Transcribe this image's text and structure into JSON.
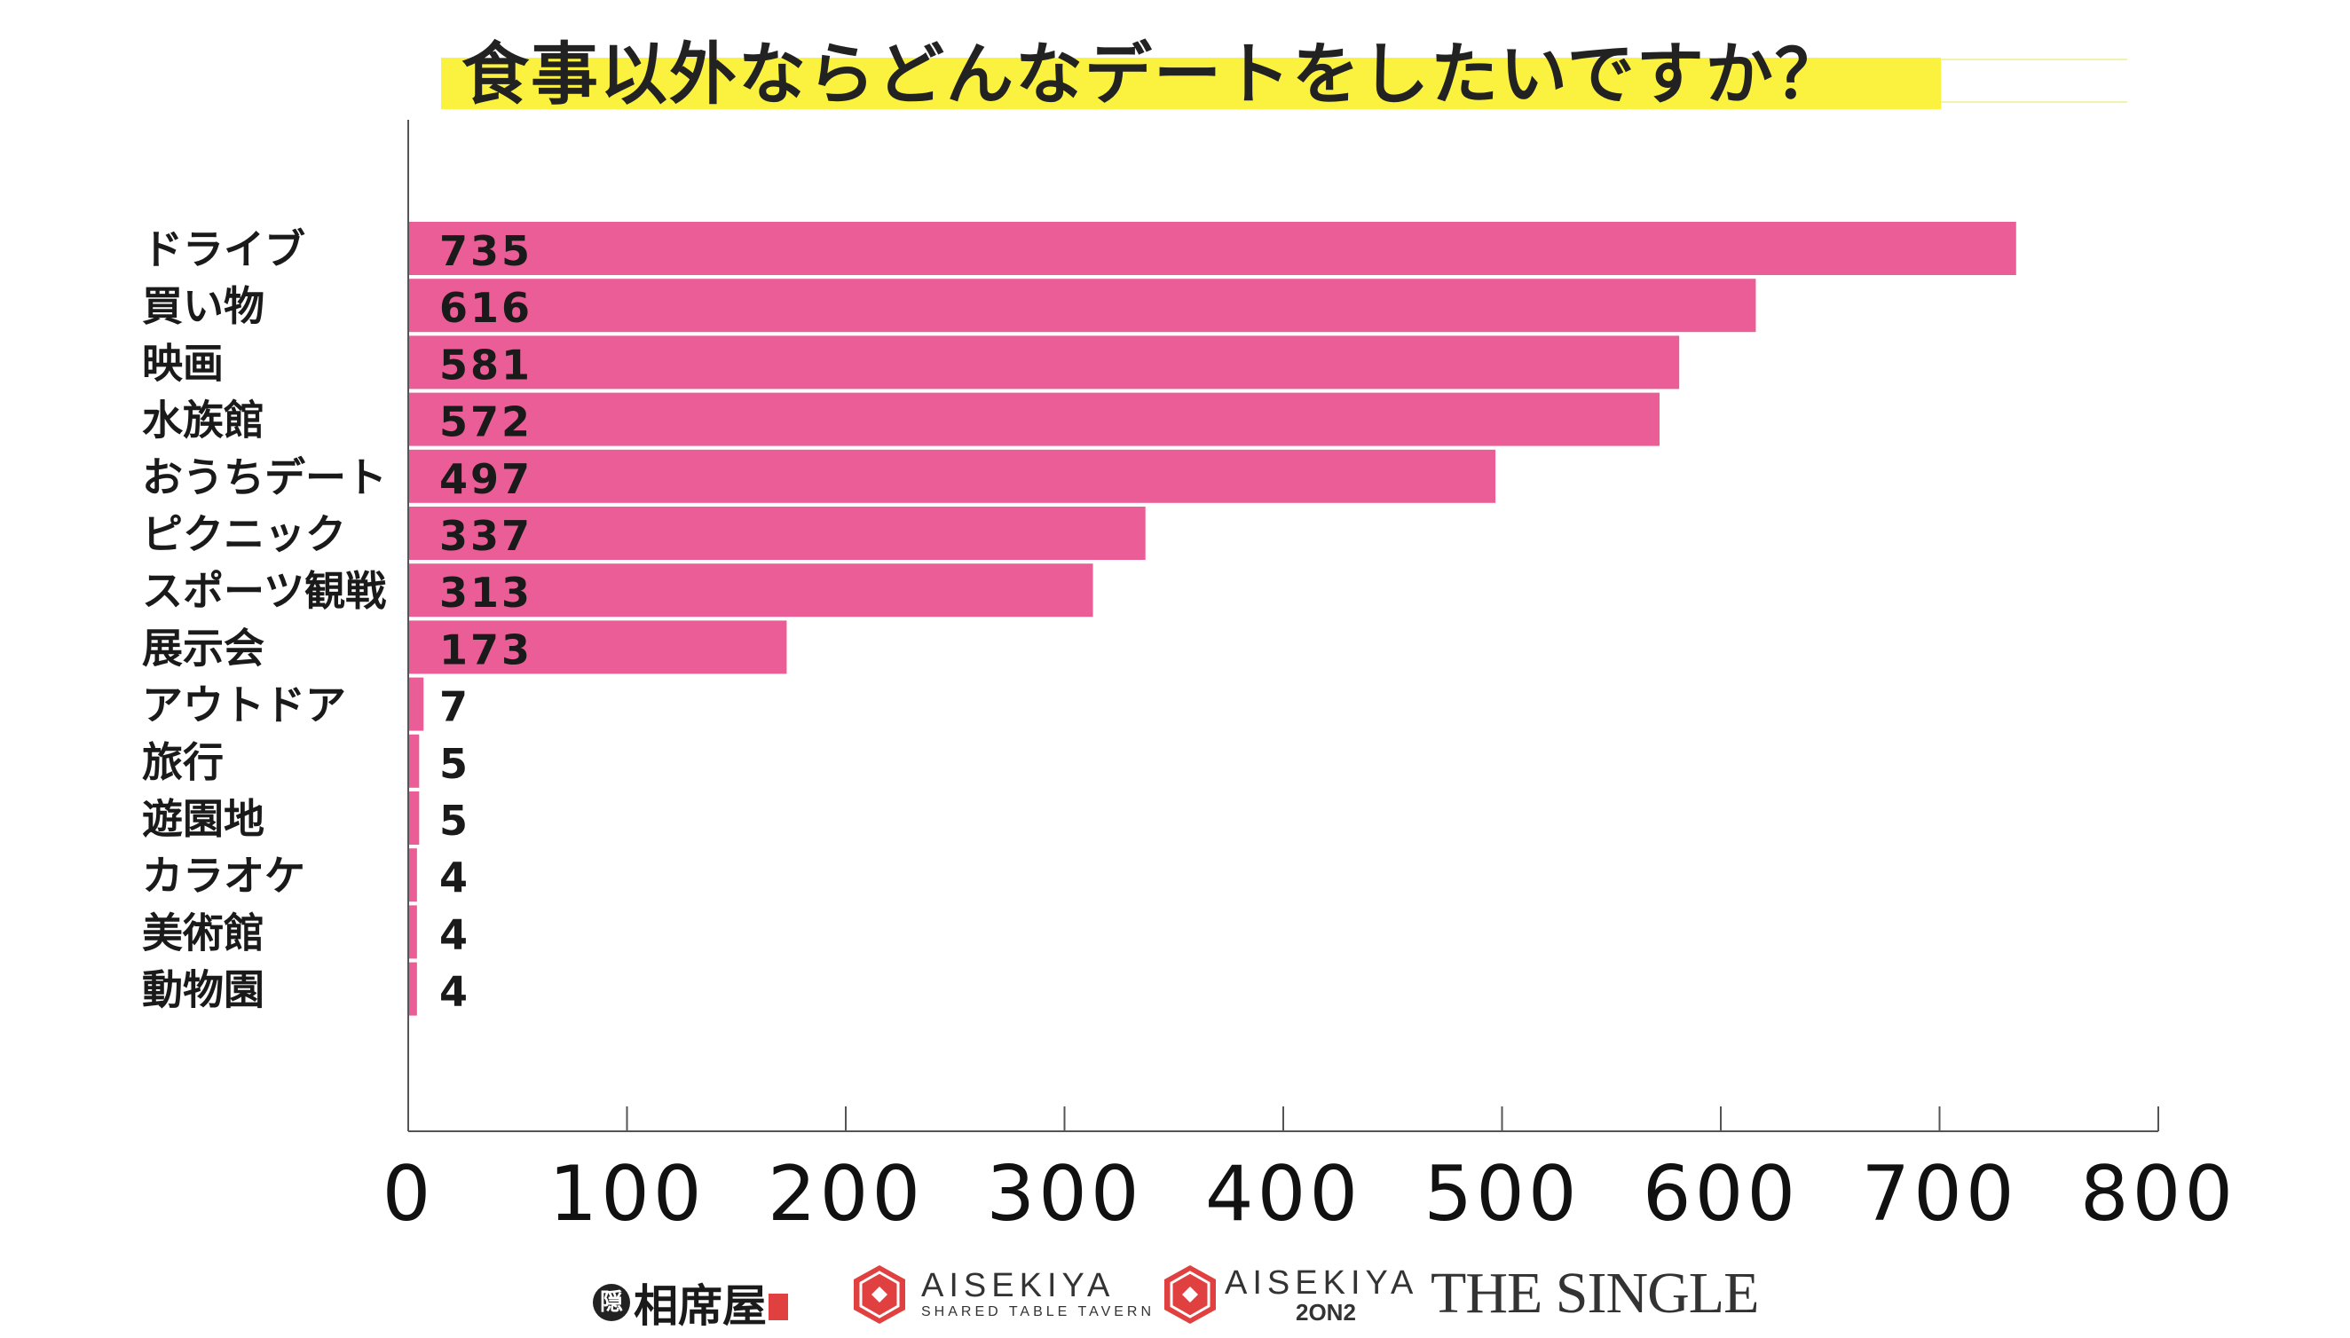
{
  "title": "食事以外ならどんなデートをしたいですか？",
  "chart_data": {
    "type": "bar",
    "orientation": "horizontal",
    "categories": [
      "ドライブ",
      "買い物",
      "映画",
      "水族館",
      "おうちデート",
      "ピクニック",
      "スポーツ観戦",
      "展示会",
      "アウトドア",
      "旅行",
      "遊園地",
      "カラオケ",
      "美術館",
      "動物園"
    ],
    "values": [
      735,
      616,
      581,
      572,
      497,
      337,
      313,
      173,
      7,
      5,
      5,
      4,
      4,
      4
    ],
    "value_labels": [
      "735",
      "616",
      "581",
      "572",
      "497",
      "337",
      "313",
      "173",
      "7",
      "5",
      "5",
      "4",
      "4",
      "4"
    ],
    "xlim": [
      0,
      800
    ],
    "xticks": [
      "0",
      "100",
      "200",
      "300",
      "400",
      "500",
      "600",
      "700",
      "800"
    ],
    "bar_color": "#ea5d96",
    "grid": false,
    "legend": "none"
  },
  "footer": {
    "logo1_text": "相席屋",
    "logo1_mark": "隠",
    "logo2_main": "AISEKIYA",
    "logo2_sub": "SHARED TABLE TAVERN",
    "logo3_main": "AISEKIYA",
    "logo3_sub": "2ON2",
    "logo4_text": "THE SINGLE",
    "accent_color": "#e04040"
  }
}
